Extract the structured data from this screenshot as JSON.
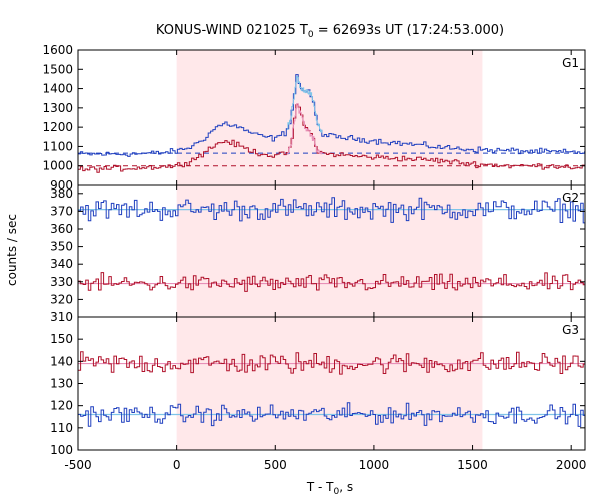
{
  "chart_data": {
    "type": "line",
    "title_prefix": "KONUS-WIND 021025 T",
    "title_sub": "0",
    "title_suffix": " = 62693s UT (17:24:53.000)",
    "xlabel_prefix": "T - T",
    "xlabel_sub": "0",
    "xlabel_suffix": ", s",
    "ylabel": "counts / sec",
    "xlim": [
      -500,
      2070
    ],
    "xticks": [
      -500,
      0,
      500,
      1000,
      1500,
      2000
    ],
    "interval": [
      0,
      1550
    ],
    "colors": {
      "blue": "#1f3fbf",
      "red": "#b0102a",
      "light_blue": "#7fc4e8",
      "pink": "#e890b8",
      "shade": "#ffe8ea"
    },
    "panels": [
      {
        "label": "G1",
        "ylim": [
          900,
          1600
        ],
        "yticks": [
          900,
          1000,
          1100,
          1200,
          1300,
          1400,
          1500,
          1600
        ],
        "background_levels": {
          "blue": 1065,
          "red": 1000
        },
        "series": [
          {
            "color": "blue",
            "x": [
              -500,
              -350,
              -200,
              -100,
              0,
              80,
              150,
              200,
              250,
              300,
              350,
              400,
              450,
              500,
              550,
              580,
              610,
              630,
              650,
              670,
              690,
              710,
              730,
              750,
              800,
              900,
              1000,
              1100,
              1200,
              1300,
              1400,
              1500,
              1600,
              1700,
              1800,
              1900,
              2000,
              2070
            ],
            "y": [
              1060,
              1060,
              1062,
              1065,
              1075,
              1100,
              1150,
              1200,
              1220,
              1205,
              1185,
              1160,
              1150,
              1140,
              1170,
              1240,
              1470,
              1400,
              1390,
              1380,
              1350,
              1230,
              1180,
              1160,
              1150,
              1140,
              1130,
              1120,
              1110,
              1100,
              1090,
              1085,
              1080,
              1078,
              1075,
              1072,
              1070,
              1070
            ]
          },
          {
            "color": "red",
            "x": [
              -500,
              -350,
              -200,
              -100,
              0,
              80,
              150,
              200,
              250,
              300,
              350,
              400,
              450,
              500,
              550,
              580,
              610,
              630,
              650,
              670,
              690,
              710,
              730,
              750,
              800,
              900,
              1000,
              1100,
              1200,
              1300,
              1400,
              1500,
              1600,
              1700,
              1800,
              1900,
              2000,
              2070
            ],
            "y": [
              980,
              985,
              990,
              995,
              1000,
              1030,
              1075,
              1110,
              1130,
              1110,
              1090,
              1070,
              1060,
              1050,
              1060,
              1100,
              1320,
              1280,
              1200,
              1180,
              1150,
              1090,
              1070,
              1060,
              1060,
              1050,
              1045,
              1040,
              1035,
              1030,
              1020,
              1010,
              1005,
              1000,
              1000,
              1000,
              995,
              995
            ]
          }
        ]
      },
      {
        "label": "G2",
        "ylim": [
          310,
          385
        ],
        "yticks": [
          310,
          320,
          330,
          340,
          350,
          360,
          370,
          380
        ],
        "background_levels": {
          "blue": 371,
          "red": 329
        },
        "series": [
          {
            "color": "blue",
            "x": [
              -500,
              2070
            ],
            "y": [
              371,
              371
            ],
            "noise": 5
          },
          {
            "color": "red",
            "x": [
              -500,
              2070
            ],
            "y": [
              329,
              329
            ],
            "noise": 4
          }
        ]
      },
      {
        "label": "G3",
        "ylim": [
          100,
          160
        ],
        "yticks": [
          100,
          110,
          120,
          130,
          140,
          150
        ],
        "background_levels": {
          "blue": 116,
          "red": 139
        },
        "series": [
          {
            "color": "red",
            "x": [
              -500,
              2070
            ],
            "y": [
              139,
              139
            ],
            "noise": 4
          },
          {
            "color": "blue",
            "x": [
              -500,
              2070
            ],
            "y": [
              116,
              116
            ],
            "noise": 3.5
          }
        ]
      }
    ]
  }
}
